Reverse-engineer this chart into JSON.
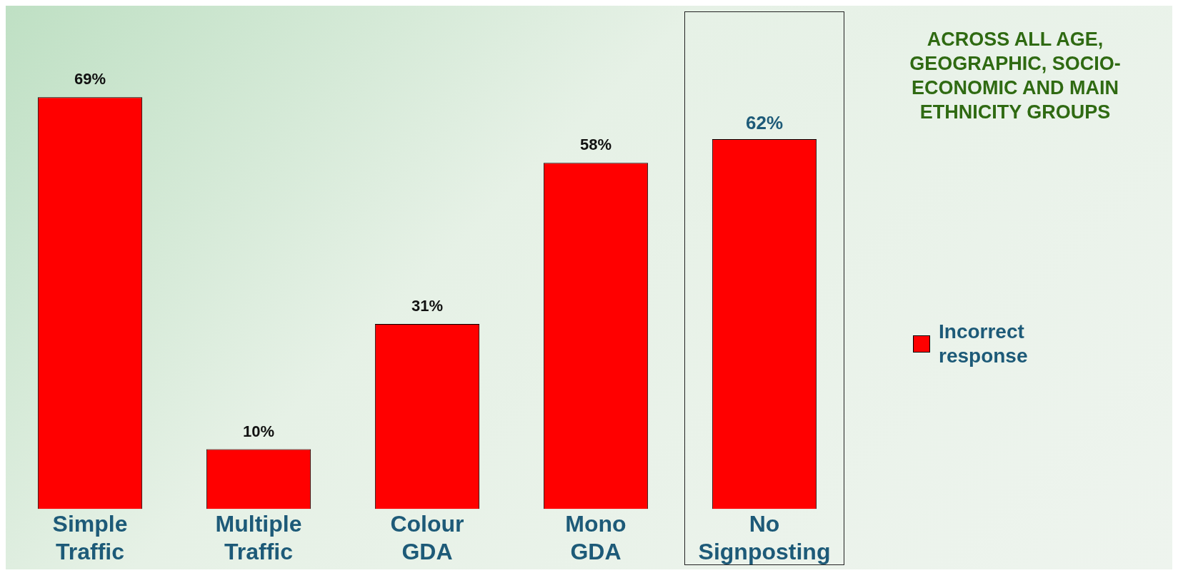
{
  "chart_data": {
    "type": "bar",
    "title": "ACROSS ALL AGE, GEOGRAPHIC, SOCIO-ECONOMIC AND MAIN ETHNICITY GROUPS",
    "categories": [
      "Simple Traffic",
      "Multiple Traffic",
      "Colour GDA",
      "Mono GDA",
      "No Signposting"
    ],
    "series": [
      {
        "name": "Incorrect response",
        "color": "#ff0000",
        "values": [
          69,
          10,
          31,
          58,
          62
        ],
        "value_labels": [
          "69%",
          "10%",
          "31%",
          "58%",
          "62%"
        ]
      }
    ],
    "legend": "right",
    "grid": false
  }
}
